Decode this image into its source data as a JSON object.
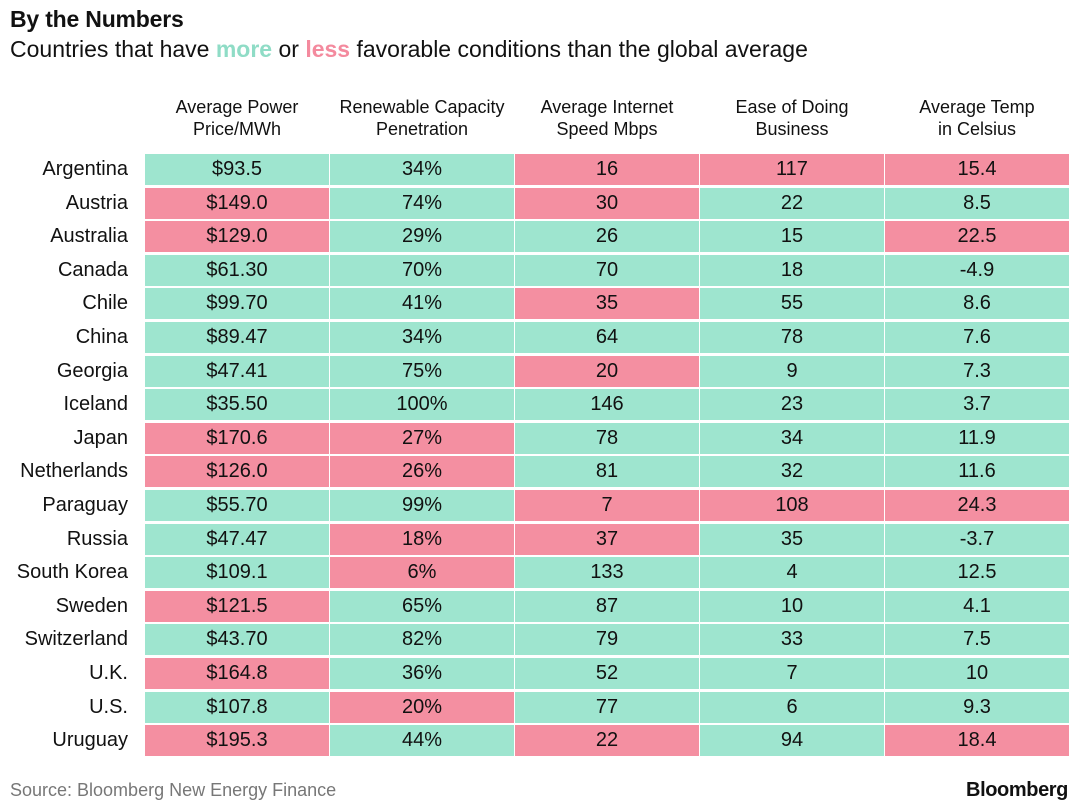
{
  "header": {
    "title": "By the Numbers",
    "subtitle_prefix": "Countries that have ",
    "subtitle_more": "more",
    "subtitle_mid": " or ",
    "subtitle_less": "less",
    "subtitle_suffix": " favorable conditions than the global average"
  },
  "colors": {
    "favorable": "#9ee5cf",
    "unfavorable": "#f48fa1",
    "more_text": "#8fdcc6",
    "less_text": "#f48a9e"
  },
  "chart_data": {
    "type": "table",
    "columns": [
      {
        "line1": "Average Power",
        "line2": "Price/MWh"
      },
      {
        "line1": "Renewable Capacity",
        "line2": "Penetration"
      },
      {
        "line1": "Average Internet",
        "line2": "Speed Mbps"
      },
      {
        "line1": "Ease of Doing",
        "line2": "Business"
      },
      {
        "line1": "Average Temp",
        "line2": "in Celsius"
      }
    ],
    "rows": [
      {
        "country": "Argentina",
        "values": [
          "$93.5",
          "34%",
          "16",
          "117",
          "15.4"
        ],
        "favorable": [
          true,
          true,
          false,
          false,
          false
        ]
      },
      {
        "country": "Austria",
        "values": [
          "$149.0",
          "74%",
          "30",
          "22",
          "8.5"
        ],
        "favorable": [
          false,
          true,
          false,
          true,
          true
        ]
      },
      {
        "country": "Australia",
        "values": [
          "$129.0",
          "29%",
          "26",
          "15",
          "22.5"
        ],
        "favorable": [
          false,
          true,
          true,
          true,
          false
        ]
      },
      {
        "country": "Canada",
        "values": [
          "$61.30",
          "70%",
          "70",
          "18",
          "-4.9"
        ],
        "favorable": [
          true,
          true,
          true,
          true,
          true
        ]
      },
      {
        "country": "Chile",
        "values": [
          "$99.70",
          "41%",
          "35",
          "55",
          "8.6"
        ],
        "favorable": [
          true,
          true,
          false,
          true,
          true
        ]
      },
      {
        "country": "China",
        "values": [
          "$89.47",
          "34%",
          "64",
          "78",
          "7.6"
        ],
        "favorable": [
          true,
          true,
          true,
          true,
          true
        ]
      },
      {
        "country": "Georgia",
        "values": [
          "$47.41",
          "75%",
          "20",
          "9",
          "7.3"
        ],
        "favorable": [
          true,
          true,
          false,
          true,
          true
        ]
      },
      {
        "country": "Iceland",
        "values": [
          "$35.50",
          "100%",
          "146",
          "23",
          "3.7"
        ],
        "favorable": [
          true,
          true,
          true,
          true,
          true
        ]
      },
      {
        "country": "Japan",
        "values": [
          "$170.6",
          "27%",
          "78",
          "34",
          "11.9"
        ],
        "favorable": [
          false,
          false,
          true,
          true,
          true
        ]
      },
      {
        "country": "Netherlands",
        "values": [
          "$126.0",
          "26%",
          "81",
          "32",
          "11.6"
        ],
        "favorable": [
          false,
          false,
          true,
          true,
          true
        ]
      },
      {
        "country": "Paraguay",
        "values": [
          "$55.70",
          "99%",
          "7",
          "108",
          "24.3"
        ],
        "favorable": [
          true,
          true,
          false,
          false,
          false
        ]
      },
      {
        "country": "Russia",
        "values": [
          "$47.47",
          "18%",
          "37",
          "35",
          "-3.7"
        ],
        "favorable": [
          true,
          false,
          false,
          true,
          true
        ]
      },
      {
        "country": "South Korea",
        "values": [
          "$109.1",
          "6%",
          "133",
          "4",
          "12.5"
        ],
        "favorable": [
          true,
          false,
          true,
          true,
          true
        ]
      },
      {
        "country": "Sweden",
        "values": [
          "$121.5",
          "65%",
          "87",
          "10",
          "4.1"
        ],
        "favorable": [
          false,
          true,
          true,
          true,
          true
        ]
      },
      {
        "country": "Switzerland",
        "values": [
          "$43.70",
          "82%",
          "79",
          "33",
          "7.5"
        ],
        "favorable": [
          true,
          true,
          true,
          true,
          true
        ]
      },
      {
        "country": "U.K.",
        "values": [
          "$164.8",
          "36%",
          "52",
          "7",
          "10"
        ],
        "favorable": [
          false,
          true,
          true,
          true,
          true
        ]
      },
      {
        "country": "U.S.",
        "values": [
          "$107.8",
          "20%",
          "77",
          "6",
          "9.3"
        ],
        "favorable": [
          true,
          false,
          true,
          true,
          true
        ]
      },
      {
        "country": "Uruguay",
        "values": [
          "$195.3",
          "44%",
          "22",
          "94",
          "18.4"
        ],
        "favorable": [
          false,
          true,
          false,
          true,
          false
        ]
      }
    ]
  },
  "footer": {
    "source": "Source: Bloomberg New Energy Finance",
    "logo": "Bloomberg"
  }
}
